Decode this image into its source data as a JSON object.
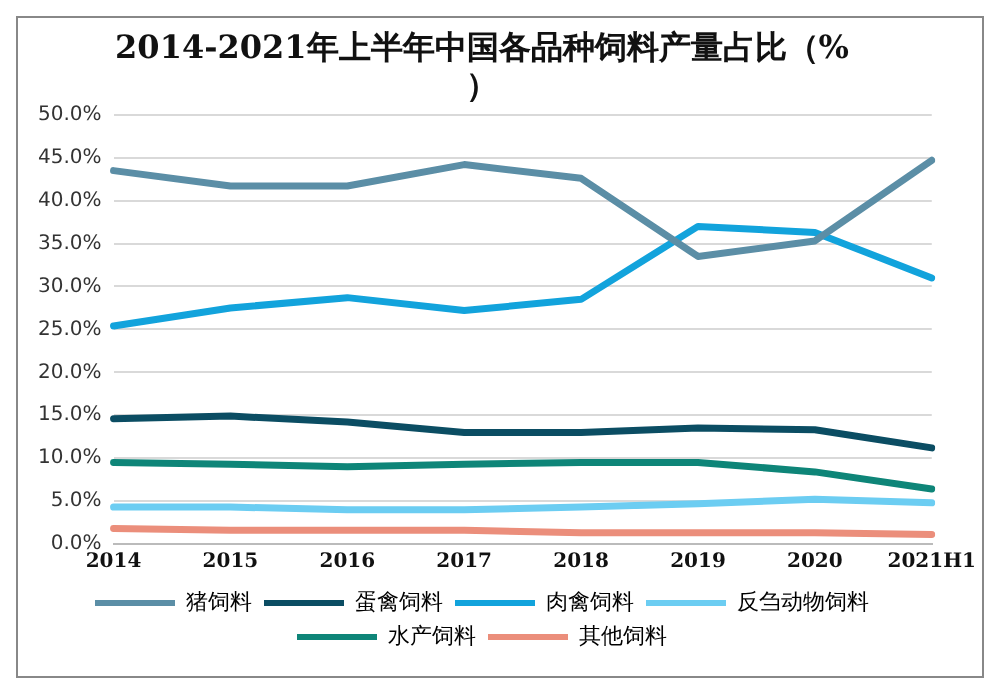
{
  "chart_data": {
    "type": "line",
    "title": "2014-2021年上半年中国各品种饲料产量占比（%）",
    "categories": [
      "2014",
      "2015",
      "2016",
      "2017",
      "2018",
      "2019",
      "2020",
      "2021H1"
    ],
    "series": [
      {
        "name": "猪饲料",
        "color": "#5b8ea6",
        "values": [
          43.5,
          41.7,
          41.7,
          44.2,
          42.6,
          33.5,
          35.3,
          44.7
        ]
      },
      {
        "name": "蛋禽饲料",
        "color": "#0b4d63",
        "values": [
          14.6,
          14.9,
          14.2,
          13.0,
          13.0,
          13.5,
          13.3,
          11.2
        ]
      },
      {
        "name": "肉禽饲料",
        "color": "#12a3dc",
        "values": [
          25.4,
          27.5,
          28.7,
          27.2,
          28.5,
          37.0,
          36.3,
          31.0
        ]
      },
      {
        "name": "反刍动物饲料",
        "color": "#6ccdf2",
        "values": [
          4.3,
          4.3,
          4.0,
          4.0,
          4.3,
          4.7,
          5.2,
          4.8
        ]
      },
      {
        "name": "水产饲料",
        "color": "#0e8578",
        "values": [
          9.5,
          9.3,
          9.0,
          9.3,
          9.5,
          9.5,
          8.4,
          6.4
        ]
      },
      {
        "name": "其他饲料",
        "color": "#eb8e7b",
        "values": [
          1.8,
          1.6,
          1.6,
          1.6,
          1.3,
          1.3,
          1.3,
          1.1
        ]
      }
    ],
    "ylim": [
      0,
      50
    ],
    "yticks": [
      {
        "value": 0,
        "label": "0.0%"
      },
      {
        "value": 5,
        "label": "5.0%"
      },
      {
        "value": 10,
        "label": "10.0%"
      },
      {
        "value": 15,
        "label": "15.0%"
      },
      {
        "value": 20,
        "label": "20.0%"
      },
      {
        "value": 25,
        "label": "25.0%"
      },
      {
        "value": 30,
        "label": "30.0%"
      },
      {
        "value": 35,
        "label": "35.0%"
      },
      {
        "value": 40,
        "label": "40.0%"
      },
      {
        "value": 45,
        "label": "45.0%"
      },
      {
        "value": 50,
        "label": "50.0%"
      }
    ],
    "grid": "y",
    "legend": "bottom",
    "marker": "none",
    "line_style": "solid"
  }
}
